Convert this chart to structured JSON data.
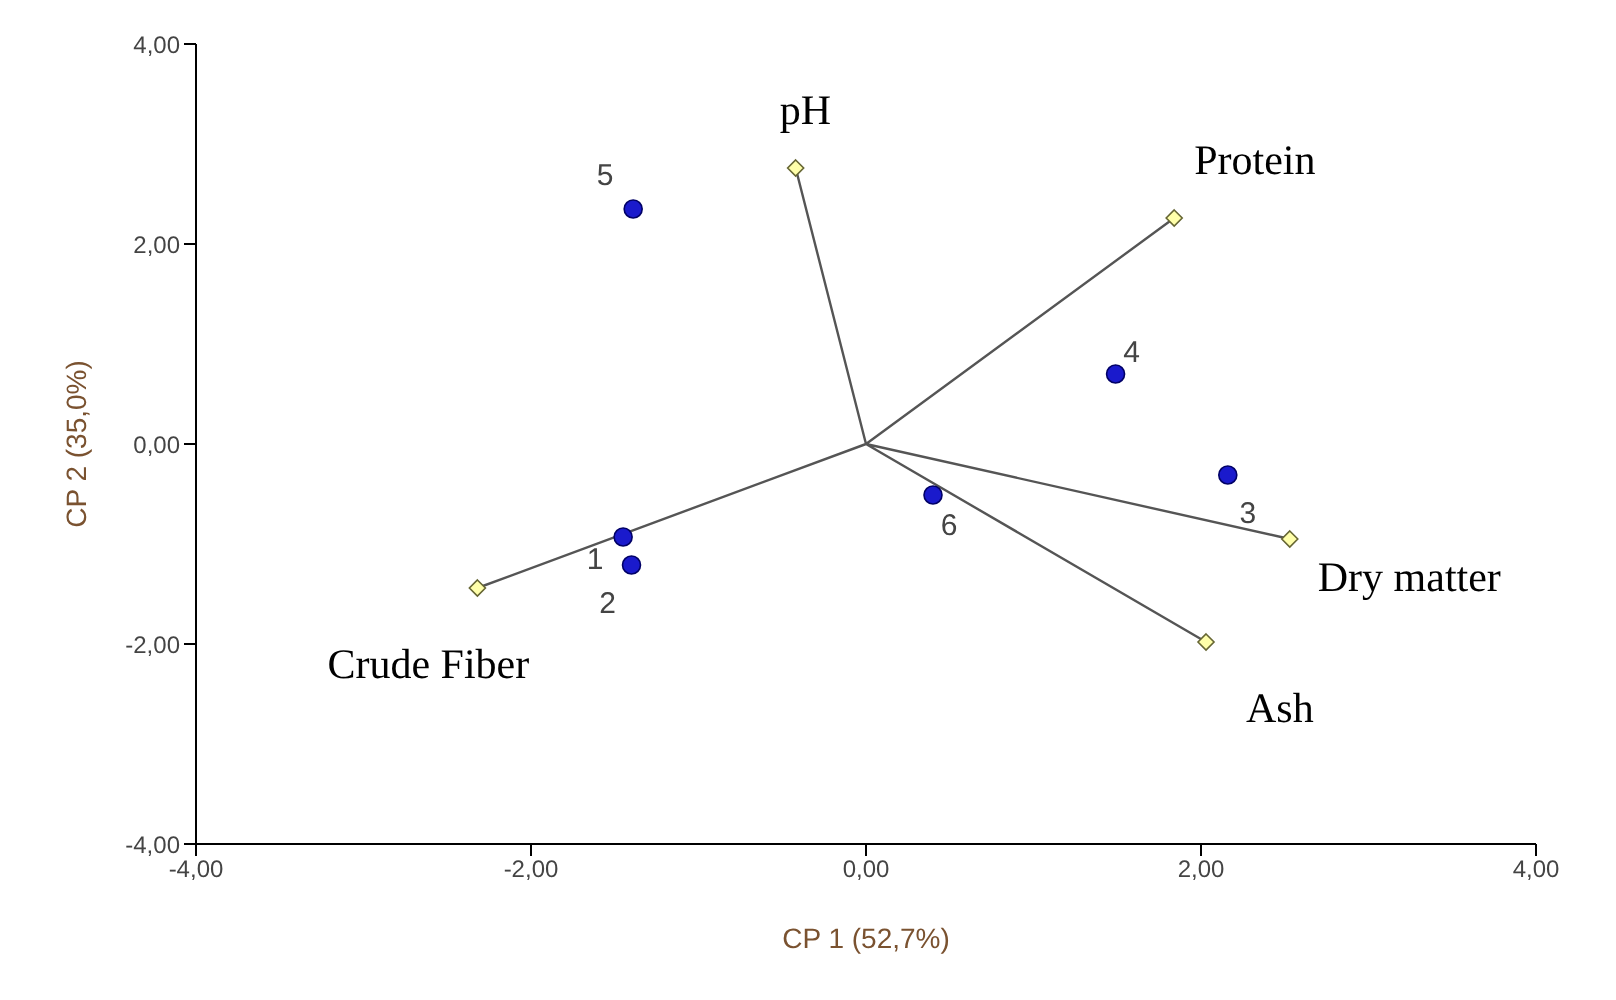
{
  "chart_data": {
    "type": "scatter",
    "xlabel": "CP 1 (52,7%)",
    "ylabel": "CP 2 (35,0%)",
    "xlim": [
      -4,
      4
    ],
    "ylim": [
      -4,
      4
    ],
    "xticks": [
      {
        "value": -4,
        "label": "-4,00"
      },
      {
        "value": -2,
        "label": "-2,00"
      },
      {
        "value": 0,
        "label": "0,00"
      },
      {
        "value": 2,
        "label": "2,00"
      },
      {
        "value": 4,
        "label": "4,00"
      }
    ],
    "yticks": [
      {
        "value": -4,
        "label": "-4,00"
      },
      {
        "value": -2,
        "label": "-2,00"
      },
      {
        "value": 0,
        "label": "0,00"
      },
      {
        "value": 2,
        "label": "2,00"
      },
      {
        "value": 4,
        "label": "4,00"
      }
    ],
    "series": [
      {
        "type": "line",
        "color": "#555555",
        "marker": "none",
        "x": [
          0,
          -0.42,
          0,
          1.84,
          0,
          2.53,
          0,
          2.03,
          0,
          -2.32
        ],
        "values": [
          0,
          2.76,
          0,
          2.26,
          0,
          -0.95,
          0,
          -1.98,
          0,
          -1.44
        ]
      },
      {
        "type": "scatter",
        "color": "#ffffaa",
        "marker": "diamond",
        "x": [
          -0.42,
          1.84,
          2.53,
          2.03,
          -2.32
        ],
        "values": [
          2.76,
          2.26,
          -0.95,
          -1.98,
          -1.44
        ]
      },
      {
        "type": "scatter",
        "color": "#1a1acc",
        "marker": "circle",
        "x": [
          -1.45,
          -1.4,
          2.16,
          1.49,
          -1.39,
          0.4
        ],
        "values": [
          -0.93,
          -1.21,
          -0.31,
          0.7,
          2.35,
          -0.51
        ]
      }
    ],
    "annotations": [
      {
        "text": "pH",
        "x": -0.42,
        "y": 2.76
      },
      {
        "text": "Protein",
        "x": 1.84,
        "y": 2.26
      },
      {
        "text": "Dry matter",
        "x": 2.53,
        "y": -0.95
      },
      {
        "text": "Ash",
        "x": 2.03,
        "y": -1.98
      },
      {
        "text": "Crude Fiber",
        "x": -2.32,
        "y": -1.44
      },
      {
        "text": "1",
        "x": -1.45,
        "y": -0.93
      },
      {
        "text": "2",
        "x": -1.4,
        "y": -1.21
      },
      {
        "text": "3",
        "x": 2.16,
        "y": -0.31
      },
      {
        "text": "4",
        "x": 1.49,
        "y": 0.7
      },
      {
        "text": "5",
        "x": -1.39,
        "y": 2.35
      },
      {
        "text": "6",
        "x": 0.4,
        "y": -0.51
      }
    ]
  }
}
